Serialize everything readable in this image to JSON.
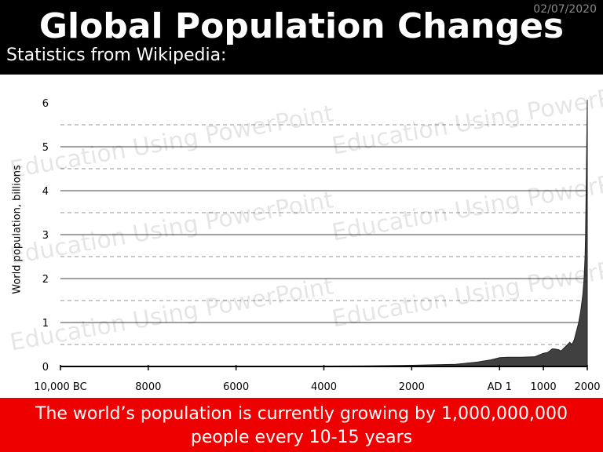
{
  "header": {
    "title": "Global Population Changes",
    "date": "02/07/2020",
    "subtitle": "Statistics from Wikipedia:"
  },
  "watermark": "Education Using PowerPoint",
  "footer": {
    "line1": "The world’s population is currently growing by 1,000,000,000",
    "line2": "people every 10-15 years"
  },
  "colors": {
    "header_bg": "#000000",
    "footer_bg": "#ee0000",
    "area_fill": "#404040",
    "grid": "#999999"
  },
  "chart_data": {
    "type": "area",
    "title": "",
    "xlabel": "",
    "ylabel": "World population, billions",
    "xlim": [
      -10000,
      2000
    ],
    "ylim": [
      0,
      6
    ],
    "grid": true,
    "y_ticks": [
      0,
      1,
      2,
      3,
      4,
      5,
      6
    ],
    "x_ticks": [
      {
        "value": -10000,
        "label": "10,000 BC"
      },
      {
        "value": -8000,
        "label": "8000"
      },
      {
        "value": -6000,
        "label": "6000"
      },
      {
        "value": -4000,
        "label": "4000"
      },
      {
        "value": -2000,
        "label": "2000"
      },
      {
        "value": 1,
        "label": "AD 1"
      },
      {
        "value": 1000,
        "label": "1000"
      },
      {
        "value": 2000,
        "label": "2000"
      }
    ],
    "series": [
      {
        "x": [
          -10000,
          -8000,
          -6000,
          -4000,
          -3000,
          -2000,
          -1000,
          -500,
          -200,
          1,
          200,
          500,
          800,
          1000,
          1100,
          1200,
          1250,
          1300,
          1350,
          1400,
          1500,
          1600,
          1650,
          1700,
          1750,
          1800,
          1850,
          1900,
          1927,
          1950,
          1960,
          1974,
          1987,
          1999,
          2000
        ],
        "y": [
          0.004,
          0.005,
          0.007,
          0.01,
          0.014,
          0.027,
          0.05,
          0.1,
          0.15,
          0.2,
          0.21,
          0.21,
          0.22,
          0.3,
          0.32,
          0.4,
          0.4,
          0.39,
          0.38,
          0.35,
          0.45,
          0.55,
          0.5,
          0.6,
          0.79,
          0.98,
          1.26,
          1.65,
          2.0,
          2.52,
          3.0,
          4.0,
          5.0,
          6.0,
          6.07
        ]
      }
    ]
  }
}
